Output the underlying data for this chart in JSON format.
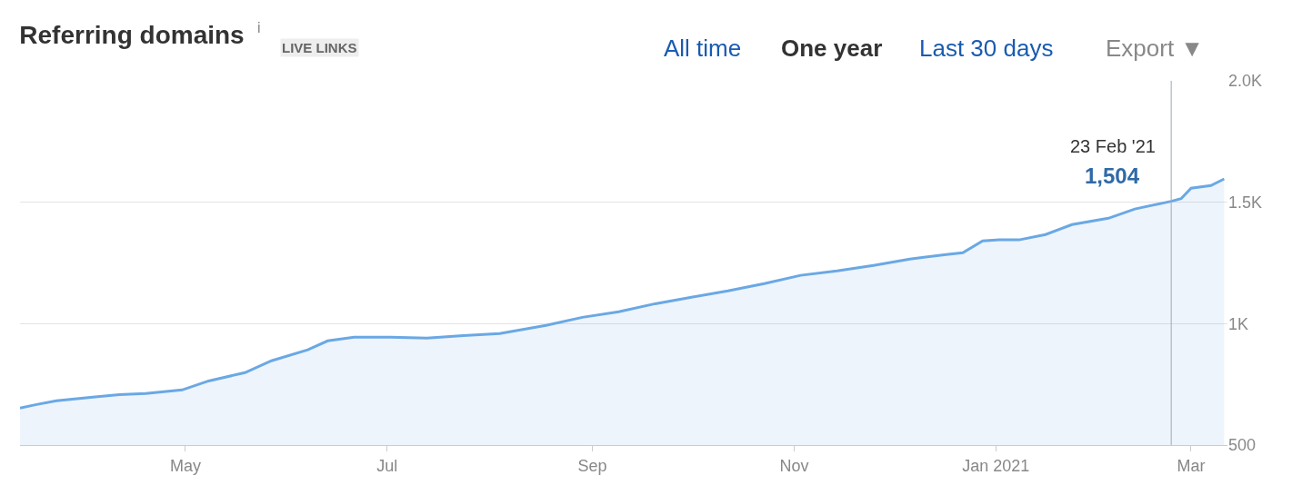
{
  "chart_data": {
    "type": "area",
    "title": "Referring domains",
    "annotations": [
      "23 Feb '21",
      "1,504",
      "i",
      "LIVE LINKS",
      "All time",
      "One year",
      "Last 30 days",
      "Export ▼"
    ],
    "x": [
      "2020-03-12",
      "2020-03-17",
      "2020-03-23",
      "2020-04-03",
      "2020-04-11",
      "2020-04-19",
      "2020-04-30",
      "2020-05-08",
      "2020-05-19",
      "2020-05-27",
      "2020-06-07",
      "2020-06-13",
      "2020-06-21",
      "2020-07-02",
      "2020-07-13",
      "2020-07-24",
      "2020-08-04",
      "2020-08-18",
      "2020-08-29",
      "2020-09-09",
      "2020-09-20",
      "2020-10-01",
      "2020-10-12",
      "2020-10-23",
      "2020-11-03",
      "2020-11-14",
      "2020-11-25",
      "2020-12-06",
      "2020-12-17",
      "2020-12-22",
      "2020-12-28",
      "2021-01-02",
      "2021-01-08",
      "2021-01-16",
      "2021-01-24",
      "2021-02-04",
      "2021-02-12",
      "2021-02-23",
      "2021-02-26",
      "2021-03-01",
      "2021-03-07",
      "2021-03-11"
    ],
    "series": [
      {
        "color": "#6aa8e4",
        "values": [
          652,
          667,
          682,
          697,
          708,
          712,
          727,
          764,
          798,
          847,
          892,
          929,
          944,
          944,
          940,
          951,
          959,
          993,
          1026,
          1049,
          1082,
          1109,
          1135,
          1165,
          1199,
          1217,
          1240,
          1266,
          1285,
          1292,
          1341,
          1345,
          1345,
          1367,
          1408,
          1434,
          1472,
          1504,
          1515,
          1558,
          1569,
          1596
        ]
      }
    ],
    "ref_lines": [
      {
        "axis": "x",
        "value": "2021-02-23",
        "color": "#a0a8b0"
      }
    ],
    "xlim": [
      "2020-03-12",
      "2021-03-12"
    ],
    "xticks": [
      {
        "value": "2020-05-01",
        "label": "May"
      },
      {
        "value": "2020-07-01",
        "label": "Jul"
      },
      {
        "value": "2020-09-01",
        "label": "Sep"
      },
      {
        "value": "2020-11-01",
        "label": "Nov"
      },
      {
        "value": "2021-01-01",
        "label": "Jan 2021"
      },
      {
        "value": "2021-03-01",
        "label": "Mar"
      }
    ],
    "ylim": [
      500,
      2000
    ],
    "yticks": [
      500,
      {
        "value": 1000,
        "label": "1K"
      },
      {
        "value": 1500,
        "label": "1.5K"
      },
      {
        "value": 2000,
        "label": "2.0K"
      }
    ],
    "grid": "y",
    "legend": false,
    "marker": "none",
    "line_style": "solid"
  }
}
